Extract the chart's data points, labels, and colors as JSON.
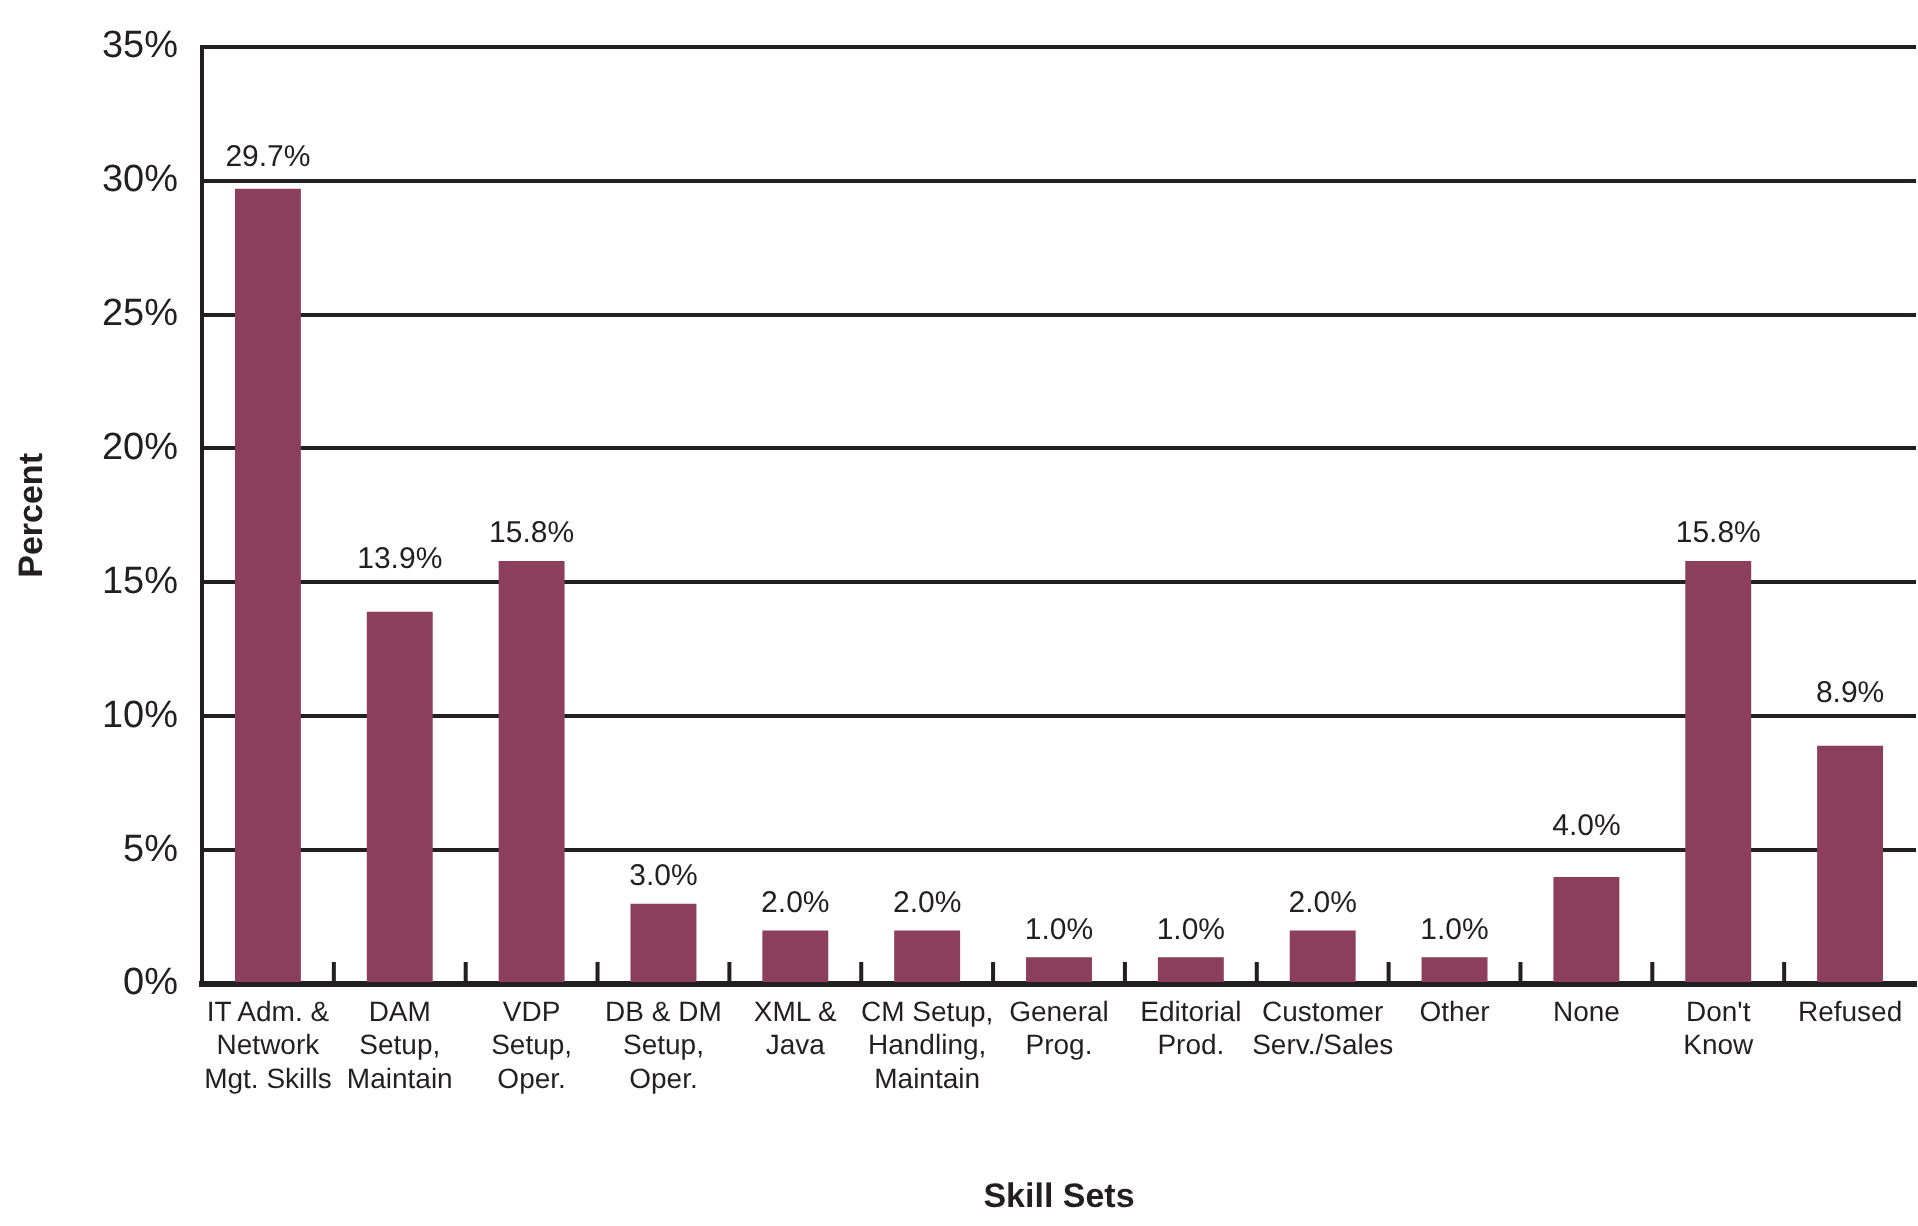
{
  "chart_data": {
    "type": "bar",
    "xlabel": "Skill Sets",
    "ylabel": "Percent",
    "categories": [
      "IT Adm. & Network Mgt. Skills",
      "DAM Setup, Maintain",
      "VDP Setup, Oper.",
      "DB & DM Setup, Oper.",
      "XML & Java",
      "CM Setup, Handling, Maintain",
      "General Prog.",
      "Editorial Prod.",
      "Customer Serv./Sales",
      "Other",
      "None",
      "Don't Know",
      "Refused"
    ],
    "values": [
      29.7,
      13.9,
      15.8,
      3.0,
      2.0,
      2.0,
      1.0,
      1.0,
      2.0,
      1.0,
      4.0,
      15.8,
      8.9
    ],
    "value_labels": [
      "29.7%",
      "13.9%",
      "15.8%",
      "3.0%",
      "2.0%",
      "2.0%",
      "1.0%",
      "1.0%",
      "2.0%",
      "1.0%",
      "4.0%",
      "15.8%",
      "8.9%"
    ],
    "color": "#8c3f5b",
    "ylim": [
      0,
      35
    ],
    "yticks": [
      {
        "value": 0,
        "label": "0%"
      },
      {
        "value": 5,
        "label": "5%"
      },
      {
        "value": 10,
        "label": "10%"
      },
      {
        "value": 15,
        "label": "15%"
      },
      {
        "value": 20,
        "label": "20%"
      },
      {
        "value": 25,
        "label": "25%"
      },
      {
        "value": 30,
        "label": "30%"
      },
      {
        "value": 35,
        "label": "35%"
      }
    ],
    "grid": "y"
  }
}
